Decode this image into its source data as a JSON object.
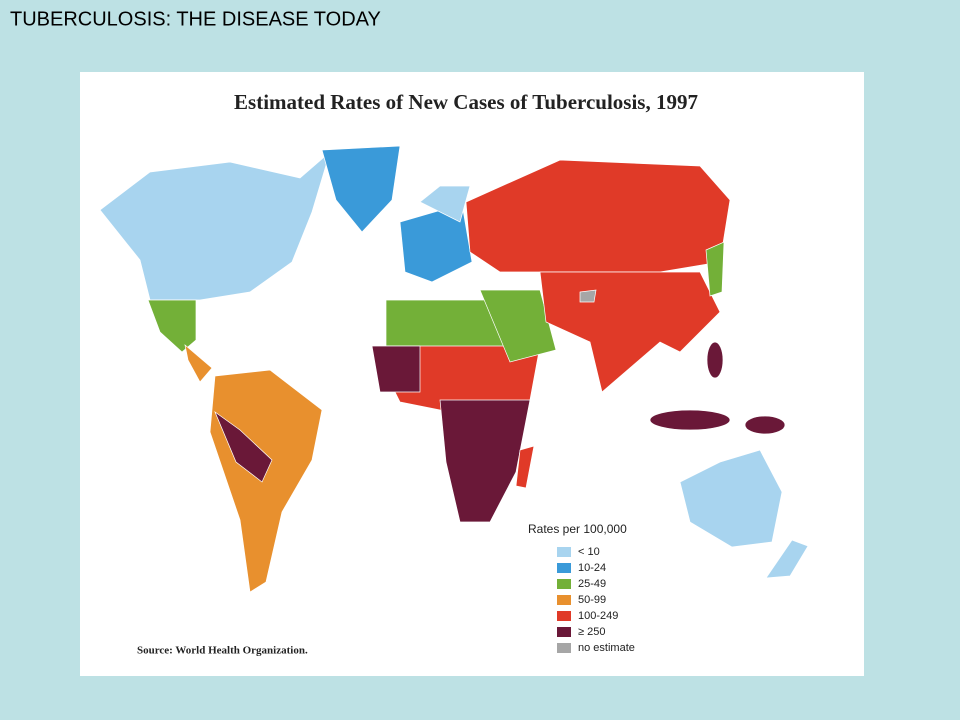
{
  "slide_title": "TUBERCULOSIS: THE DISEASE TODAY",
  "map": {
    "title": "Estimated Rates of New Cases of Tuberculosis, 1997",
    "legend": {
      "title": "Rates per 100,000",
      "items": [
        {
          "label": "< 10",
          "color": "#a8d4ef"
        },
        {
          "label": "10-24",
          "color": "#3a9ad9"
        },
        {
          "label": "25-49",
          "color": "#73b038"
        },
        {
          "label": "50-99",
          "color": "#e8902e"
        },
        {
          "label": "100-249",
          "color": "#e03a28"
        },
        {
          "label": "≥ 250",
          "color": "#6a1838"
        },
        {
          "label": "no estimate",
          "color": "#a6a6a6"
        }
      ]
    },
    "source": "Source:  World Health Organization."
  }
}
